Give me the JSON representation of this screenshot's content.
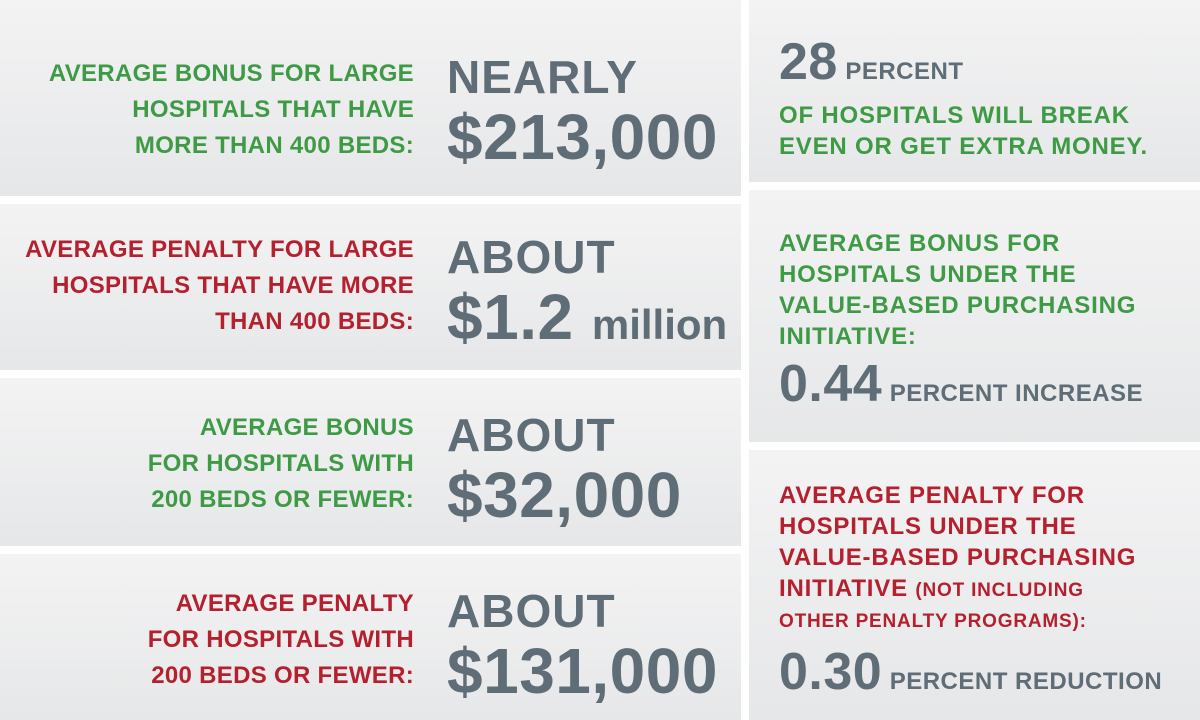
{
  "left_panels": [
    {
      "label_lines": [
        "AVERAGE BONUS FOR LARGE",
        "HOSPITALS THAT HAVE",
        "MORE THAN 400 BEDS:"
      ],
      "prefix": "NEARLY",
      "value": "$213,000",
      "suffix": ""
    },
    {
      "label_lines": [
        "AVERAGE PENALTY FOR LARGE",
        "HOSPITALS THAT HAVE MORE",
        "THAN 400 BEDS:"
      ],
      "prefix": "ABOUT",
      "value": "$1.2",
      "suffix": "million"
    },
    {
      "label_lines": [
        "AVERAGE BONUS",
        "FOR HOSPITALS WITH",
        "200 BEDS OR FEWER:"
      ],
      "prefix": "ABOUT",
      "value": "$32,000",
      "suffix": ""
    },
    {
      "label_lines": [
        "AVERAGE PENALTY",
        "FOR HOSPITALS WITH",
        "200 BEDS OR FEWER:"
      ],
      "prefix": "ABOUT",
      "value": "$131,000",
      "suffix": ""
    }
  ],
  "right_panels": {
    "break_even": {
      "number": "28",
      "unit": "PERCENT",
      "lines": [
        "OF HOSPITALS WILL BREAK",
        "EVEN OR GET EXTRA MONEY."
      ]
    },
    "vbp_bonus": {
      "lines": [
        "AVERAGE BONUS FOR",
        "HOSPITALS UNDER THE",
        "VALUE-BASED PURCHASING",
        "INITIATIVE:"
      ],
      "number": "0.44",
      "unit": "PERCENT INCREASE"
    },
    "vbp_penalty": {
      "lines": [
        "AVERAGE PENALTY FOR",
        "HOSPITALS UNDER THE",
        "VALUE-BASED PURCHASING"
      ],
      "last_line_main": "INITIATIVE",
      "last_line_note": "(NOT INCLUDING",
      "note_line2": "OTHER PENALTY PROGRAMS):",
      "number": "0.30",
      "unit": "PERCENT REDUCTION"
    }
  },
  "colors": {
    "bonus_green": "#3e9a45",
    "penalty_red": "#b5202e",
    "figure_gray": "#5f6d77",
    "panel_bg": "#ebebec"
  }
}
